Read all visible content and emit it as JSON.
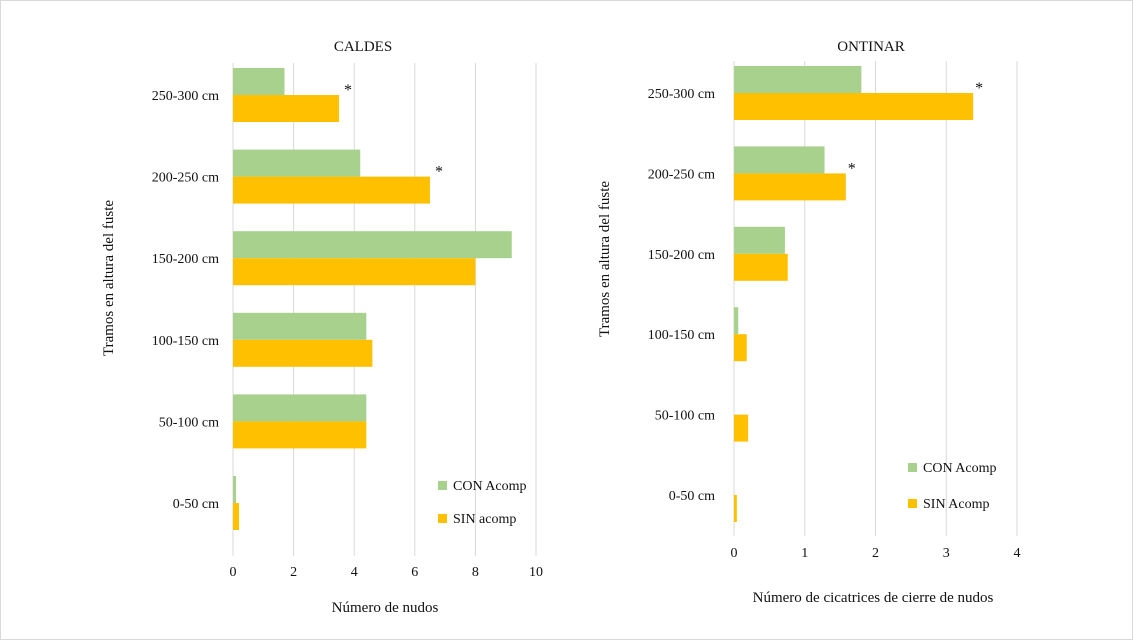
{
  "colors": {
    "con": "#a9d18e",
    "sin": "#ffc000",
    "grid": "#d9d9d9",
    "text": "#111111"
  },
  "chart_data": [
    {
      "type": "bar",
      "orientation": "horizontal",
      "title": "CALDES",
      "xlabel": "Número de nudos",
      "ylabel": "Tramos en altura del fuste",
      "categories": [
        "250-300 cm",
        "200-250 cm",
        "150-200 cm",
        "100-150 cm",
        "50-100 cm",
        "0-50 cm"
      ],
      "series": [
        {
          "name": "CON Acomp",
          "values": [
            1.7,
            4.2,
            9.2,
            4.4,
            4.4,
            0.1
          ]
        },
        {
          "name": "SIN acomp",
          "values": [
            3.5,
            6.5,
            8.0,
            4.6,
            4.4,
            0.2
          ]
        }
      ],
      "annotations": [
        "*",
        "*",
        "",
        "",
        "",
        ""
      ],
      "xlim": [
        0,
        11
      ],
      "xticks": [
        "0",
        "2",
        "4",
        "6",
        "8",
        "10"
      ],
      "grid": true,
      "legend_position": "bottom-right"
    },
    {
      "type": "bar",
      "orientation": "horizontal",
      "title": "ONTINAR",
      "xlabel": "Número de cicatrices de cierre de nudos",
      "ylabel": "Tramos en altura del fuste",
      "categories": [
        "250-300 cm",
        "200-250 cm",
        "150-200 cm",
        "100-150 cm",
        "50-100 cm",
        "0-50 cm"
      ],
      "series": [
        {
          "name": "CON Acomp",
          "values": [
            1.8,
            1.28,
            0.72,
            0.06,
            0.0,
            0.0
          ]
        },
        {
          "name": "SIN Acomp",
          "values": [
            3.38,
            1.58,
            0.76,
            0.18,
            0.2,
            0.04
          ]
        }
      ],
      "annotations": [
        "*",
        "*",
        "",
        "",
        "",
        ""
      ],
      "xlim": [
        0,
        4
      ],
      "xticks": [
        "0",
        "1",
        "2",
        "3",
        "4"
      ],
      "grid": true,
      "legend_position": "bottom-right"
    }
  ]
}
